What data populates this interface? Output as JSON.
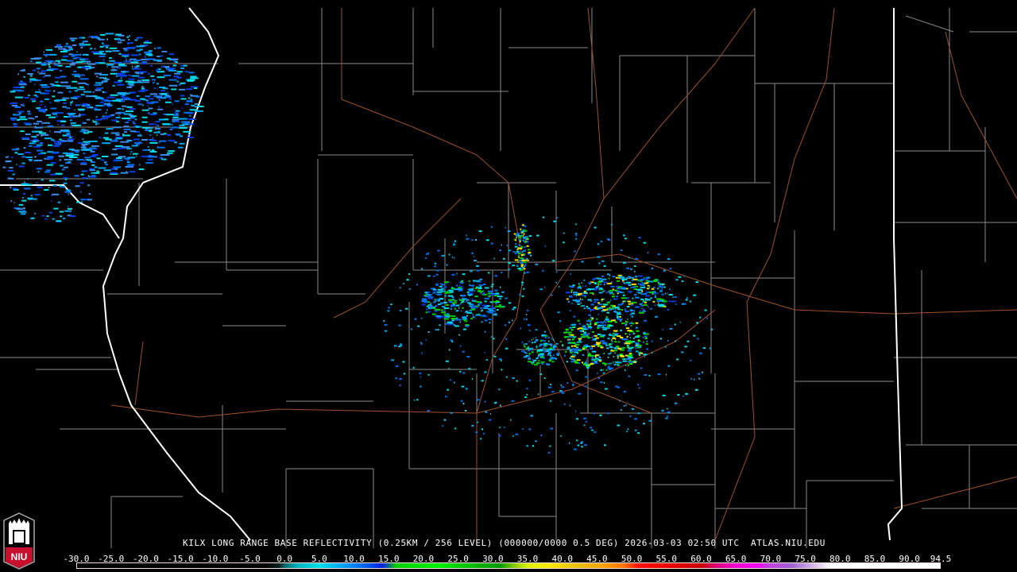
{
  "product": {
    "title": "KILX LONG RANGE BASE REFLECTIVITY (0.25KM / 256 LEVEL) (000000/0000 0.5 DEG) 2026-03-03 02:50 UTC  ATLAS.NIU.EDU",
    "radar_site": "KILX",
    "timestamp": "2026-03-03 02:50 UTC"
  },
  "logo": {
    "text": "NIU",
    "color": "#c8102e"
  },
  "colorbar": {
    "labels": [
      "-30.0",
      "-25.0",
      "-20.0",
      "-15.0",
      "-10.0",
      "-5.0",
      "0.0",
      "5.0",
      "10.0",
      "15.0",
      "20.0",
      "25.0",
      "30.0",
      "35.0",
      "40.0",
      "45.0",
      "50.0",
      "55.0",
      "60.0",
      "65.0",
      "70.0",
      "75.0",
      "80.0",
      "85.0",
      "90.0",
      "94.5"
    ],
    "range": [
      -30,
      94.5
    ],
    "stops": [
      [
        -30,
        "#000000"
      ],
      [
        -3,
        "#000000"
      ],
      [
        -1,
        "#0a1a1a"
      ],
      [
        0,
        "#006a6a"
      ],
      [
        2,
        "#00b8c0"
      ],
      [
        5,
        "#00dde8"
      ],
      [
        8,
        "#00a8f0"
      ],
      [
        11,
        "#0070f0"
      ],
      [
        14,
        "#0020e0"
      ],
      [
        15,
        "#006a8a"
      ],
      [
        16,
        "#00d000"
      ],
      [
        22,
        "#00f000"
      ],
      [
        28,
        "#00b000"
      ],
      [
        31,
        "#009a00"
      ],
      [
        33,
        "#80c800"
      ],
      [
        35,
        "#d8f000"
      ],
      [
        38,
        "#f8e800"
      ],
      [
        42,
        "#e8c000"
      ],
      [
        46,
        "#f8a000"
      ],
      [
        49,
        "#ff7000"
      ],
      [
        51,
        "#ff1000"
      ],
      [
        56,
        "#e80000"
      ],
      [
        60,
        "#c80000"
      ],
      [
        62,
        "#d80070"
      ],
      [
        65,
        "#f000d0"
      ],
      [
        68,
        "#f000f0"
      ],
      [
        70,
        "#c040e0"
      ],
      [
        73,
        "#a060d0"
      ],
      [
        76,
        "#d0b0e8"
      ],
      [
        78,
        "#f0e8f8"
      ],
      [
        79,
        "#ffffff"
      ],
      [
        94.5,
        "#ffffff"
      ]
    ]
  },
  "colors": {
    "state_border": "#ffffff",
    "county_border": "#8a8a8a",
    "roads": "#a0502a"
  }
}
